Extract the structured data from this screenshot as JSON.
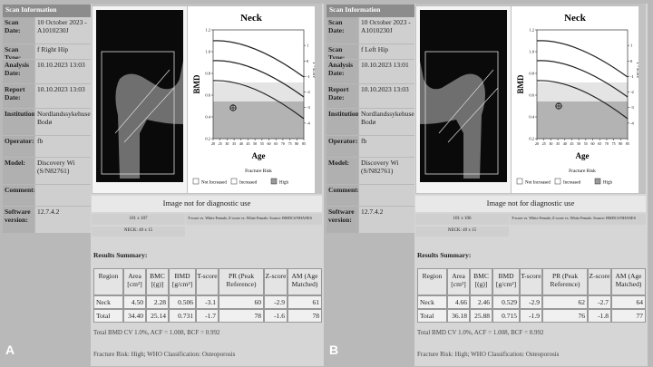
{
  "panels": [
    {
      "label": "A",
      "scan_info": {
        "header": "Scan Information",
        "rows": [
          {
            "label": "Scan Date:",
            "value": "10 October 2023 - A1010230J"
          },
          {
            "label": "Scan Type:",
            "value": "f Right Hip"
          },
          {
            "label": "Analysis Date:",
            "value": "10.10.2023 13:03"
          },
          {
            "label": "Report Date:",
            "value": "10.10.2023 13:03"
          },
          {
            "label": "Institution:",
            "value": "Nordlandssykehuset Bodø"
          },
          {
            "label": "Operator:",
            "value": "fb"
          },
          {
            "label": "Model:",
            "value": "Discovery Wi (S/N82761)"
          },
          {
            "label": "Comment:"
          },
          {
            "label": "Software version:",
            "value": "12.7.4.2"
          }
        ]
      },
      "chart": {
        "title": "Neck",
        "y_label": "BMD",
        "y2_label": "T - score",
        "x_label": "Age",
        "ylim": [
          0.2,
          1.2
        ],
        "yticks": [
          1.2,
          {
            "value": 1,
            "label": "1.0"
          },
          0.8,
          0.6,
          0.4,
          0.2
        ],
        "y2lim": [
          -5,
          2
        ],
        "y2ticks": [
          1,
          0,
          -1,
          -2,
          -3,
          -4
        ],
        "xlim": [
          20,
          85
        ],
        "xticks": [
          20,
          25,
          30,
          35,
          40,
          45,
          50,
          55,
          60,
          65,
          70,
          75,
          80,
          85
        ],
        "legend_title": "Fracture Risk",
        "legend": [
          "Not Increased",
          "Increased",
          "High"
        ]
      },
      "image_note": "Image not for diagnostic use",
      "image_size": "101 x 107",
      "reference_note": "T-score vs. White Female; Z-score vs. White Female. Source: BMDCS/NHANES",
      "roi": "NECK: 49 x 15",
      "results": {
        "title": "Results Summary:",
        "header": [
          "Region",
          "Area [cm²]",
          "BMC [(g)]",
          "BMD [g/cm²]",
          "T-score",
          "PR (Peak Reference)",
          "Z-score",
          "AM (Age Matched)"
        ],
        "rows": [
          [
            "Neck",
            "4.50",
            "2.28",
            "0.506",
            "-3.1",
            "60",
            "-2.9",
            "61"
          ],
          [
            "Total",
            "34.40",
            "25.14",
            "0.731",
            "-1.7",
            "78",
            "-1.6",
            "78"
          ]
        ]
      },
      "notes": [
        "Total BMD CV 1.0%, ACF = 1.008, BCF = 0.992",
        "Fracture Risk: High; WHO Classification: Osteoporosis"
      ]
    },
    {
      "label": "B",
      "scan_info": {
        "header": "Scan Information",
        "rows": [
          {
            "label": "Scan Date:",
            "value": "10 October 2023 - A1010230J"
          },
          {
            "label": "Scan Type:",
            "value": "f Left Hip"
          },
          {
            "label": "Analysis Date:",
            "value": "10.10.2023 13:01"
          },
          {
            "label": "Report Date:",
            "value": "10.10.2023 13:03"
          },
          {
            "label": "Institution:",
            "value": "Nordlandssykehuset Bodø"
          },
          {
            "label": "Operator:",
            "value": "fb"
          },
          {
            "label": "Model:",
            "value": "Discovery Wi (S/N82761)"
          },
          {
            "label": "Comment:"
          },
          {
            "label": "Software version:",
            "value": "12.7.4.2"
          }
        ]
      },
      "chart": {
        "title": "Neck",
        "y_label": "BMD",
        "y2_label": "T - score",
        "x_label": "Age",
        "ylim": [
          0.2,
          1.2
        ],
        "yticks": [
          1.2,
          {
            "value": 1,
            "label": "1.0"
          },
          0.8,
          0.6,
          0.4,
          0.2
        ],
        "y2lim": [
          -5,
          2
        ],
        "y2ticks": [
          1,
          0,
          -1,
          -2,
          -3,
          -4
        ],
        "xlim": [
          20,
          85
        ],
        "xticks": [
          20,
          25,
          30,
          35,
          40,
          45,
          50,
          55,
          60,
          65,
          70,
          75,
          80,
          85
        ],
        "legend_title": "Fracture Risk",
        "legend": [
          "Not Increased",
          "Increased",
          "High"
        ]
      },
      "image_note": "Image not for diagnostic use",
      "image_size": "101 x 106",
      "reference_note": "T-score vs. White Female; Z-score vs. White Female. Source: BMDCS/NHANES",
      "roi": "NECK: 49 x 15",
      "results": {
        "title": "Results Summary:",
        "header": [
          "Region",
          "Area [cm²]",
          "BMC [(g)]",
          "BMD [g/cm²]",
          "T-score",
          "PR (Peak Reference)",
          "Z-score",
          "AM (Age Matched)"
        ],
        "rows": [
          [
            "Neck",
            "4.66",
            "2.46",
            "0.529",
            "-2.9",
            "62",
            "-2.7",
            "64"
          ],
          [
            "Total",
            "36.18",
            "25.88",
            "0.715",
            "-1.9",
            "76",
            "-1.8",
            "77"
          ]
        ]
      },
      "notes": [
        "Total BMD CV 1.0%, ACF = 1.008, BCF = 0.992",
        "Fracture Risk: High; WHO Classification: Osteoporosis"
      ]
    }
  ]
}
